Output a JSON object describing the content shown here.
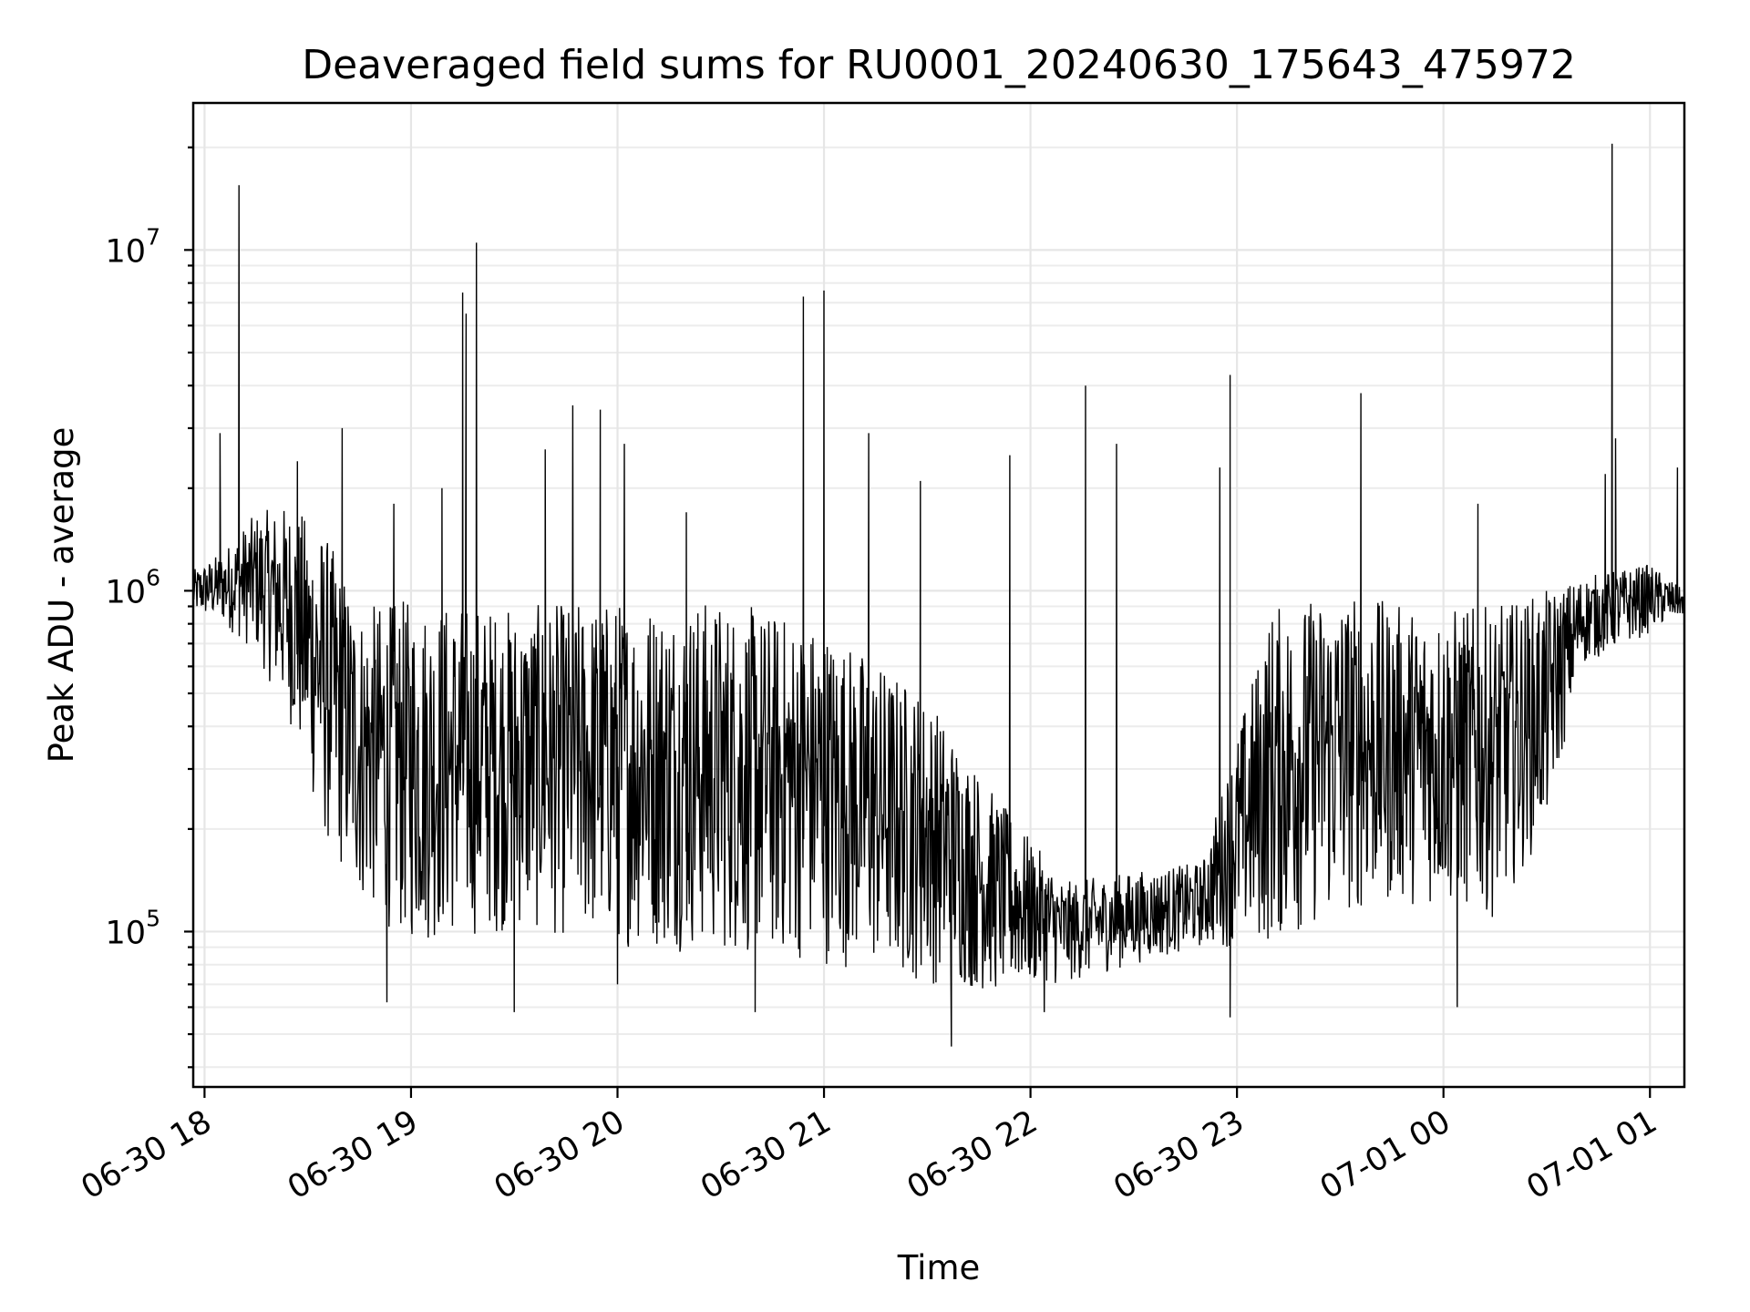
{
  "chart_data": {
    "type": "line",
    "title": "Deaveraged field sums for RU0001_20240630_175643_475972",
    "xlabel": "Time",
    "ylabel": "Peak ADU - average",
    "yscale": "log",
    "ylim": [
      35000,
      27000000
    ],
    "xlim": [
      "2024-06-30 17:56:43",
      "2024-07-01 01:10:00"
    ],
    "x_ticks": [
      "06-30 18",
      "06-30 19",
      "06-30 20",
      "06-30 21",
      "06-30 22",
      "06-30 23",
      "07-01 00",
      "07-01 01"
    ],
    "y_ticks": [
      {
        "base": "10",
        "exp": "5"
      },
      {
        "base": "10",
        "exp": "6"
      },
      {
        "base": "10",
        "exp": "7"
      }
    ],
    "grid": true,
    "legend": "none",
    "line_color": "#000000",
    "series": [
      {
        "x": [
          "2024-06-30 17:56:43",
          "2024-06-30 18:05:00",
          "2024-06-30 18:15:00",
          "2024-06-30 18:25:00",
          "2024-06-30 18:35:00",
          "2024-06-30 18:45:00",
          "2024-06-30 19:00:00",
          "2024-06-30 19:30:00",
          "2024-06-30 20:00:00",
          "2024-06-30 20:30:00",
          "2024-06-30 21:00:00",
          "2024-06-30 21:30:00",
          "2024-06-30 21:50:00",
          "2024-06-30 22:10:00",
          "2024-06-30 22:30:00",
          "2024-06-30 22:50:00",
          "2024-06-30 23:10:00",
          "2024-06-30 23:30:00",
          "2024-06-30 23:50:00",
          "2024-07-01 00:15:00",
          "2024-07-01 00:30:00",
          "2024-07-01 00:40:00",
          "2024-07-01 01:00:00",
          "2024-07-01 01:10:00"
        ],
        "y_envelope_low": [
          850000,
          800000,
          650000,
          400000,
          180000,
          120000,
          90000,
          100000,
          90000,
          85000,
          80000,
          70000,
          65000,
          70000,
          80000,
          90000,
          90000,
          110000,
          120000,
          110000,
          200000,
          600000,
          750000,
          850000
        ],
        "y_envelope_high": [
          1150000,
          1300000,
          1700000,
          1800000,
          1500000,
          900000,
          950000,
          900000,
          950000,
          950000,
          800000,
          500000,
          250000,
          140000,
          150000,
          160000,
          900000,
          1000000,
          900000,
          900000,
          1000000,
          1100000,
          1200000,
          1000000
        ]
      }
    ],
    "spikes": [
      {
        "x": "2024-06-30 18:04:30",
        "y": 2900000
      },
      {
        "x": "2024-06-30 18:10:00",
        "y": 15500000
      },
      {
        "x": "2024-06-30 18:27:00",
        "y": 2400000
      },
      {
        "x": "2024-06-30 18:40:00",
        "y": 3000000
      },
      {
        "x": "2024-06-30 18:55:00",
        "y": 1800000
      },
      {
        "x": "2024-06-30 19:09:00",
        "y": 2000000
      },
      {
        "x": "2024-06-30 19:15:00",
        "y": 7500000
      },
      {
        "x": "2024-06-30 19:16:00",
        "y": 6500000
      },
      {
        "x": "2024-06-30 19:19:00",
        "y": 10500000
      },
      {
        "x": "2024-06-30 19:39:00",
        "y": 2600000
      },
      {
        "x": "2024-06-30 19:47:00",
        "y": 3500000
      },
      {
        "x": "2024-06-30 19:55:00",
        "y": 3400000
      },
      {
        "x": "2024-06-30 20:02:00",
        "y": 2700000
      },
      {
        "x": "2024-06-30 20:20:00",
        "y": 1700000
      },
      {
        "x": "2024-06-30 20:54:00",
        "y": 7300000
      },
      {
        "x": "2024-06-30 21:00:00",
        "y": 7600000
      },
      {
        "x": "2024-06-30 21:13:00",
        "y": 2900000
      },
      {
        "x": "2024-06-30 21:28:00",
        "y": 2100000
      },
      {
        "x": "2024-06-30 21:54:00",
        "y": 2500000
      },
      {
        "x": "2024-06-30 22:16:00",
        "y": 4000000
      },
      {
        "x": "2024-06-30 22:25:00",
        "y": 2700000
      },
      {
        "x": "2024-06-30 22:55:00",
        "y": 2300000
      },
      {
        "x": "2024-06-30 22:58:00",
        "y": 4300000
      },
      {
        "x": "2024-06-30 23:36:00",
        "y": 3800000
      },
      {
        "x": "2024-07-01 00:10:00",
        "y": 1800000
      },
      {
        "x": "2024-07-01 00:47:00",
        "y": 2200000
      },
      {
        "x": "2024-07-01 00:49:00",
        "y": 20500000
      },
      {
        "x": "2024-07-01 00:50:00",
        "y": 2800000
      },
      {
        "x": "2024-07-01 01:08:00",
        "y": 2300000
      }
    ],
    "dips": [
      {
        "x": "2024-06-30 18:53:00",
        "y": 62000
      },
      {
        "x": "2024-06-30 19:30:00",
        "y": 58000
      },
      {
        "x": "2024-06-30 20:00:00",
        "y": 70000
      },
      {
        "x": "2024-06-30 20:40:00",
        "y": 58000
      },
      {
        "x": "2024-06-30 21:37:00",
        "y": 46000
      },
      {
        "x": "2024-06-30 22:04:00",
        "y": 58000
      },
      {
        "x": "2024-06-30 22:58:00",
        "y": 56000
      },
      {
        "x": "2024-07-01 00:04:00",
        "y": 60000
      }
    ]
  }
}
